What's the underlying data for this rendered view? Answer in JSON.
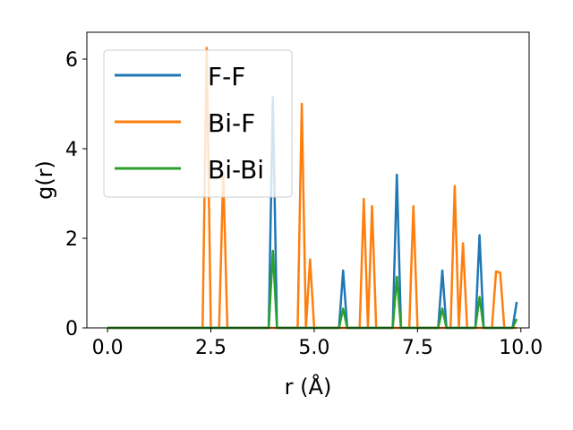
{
  "chart_data": {
    "type": "line",
    "xlabel": "r (Å)",
    "ylabel": "g(r)",
    "xlim": [
      -0.5,
      10.2
    ],
    "ylim": [
      0,
      6.6
    ],
    "xticks": [
      0.0,
      2.5,
      5.0,
      7.5,
      10.0
    ],
    "xtick_labels": [
      "0.0",
      "2.5",
      "5.0",
      "7.5",
      "10.0"
    ],
    "yticks": [
      0,
      2,
      4,
      6
    ],
    "ytick_labels": [
      "0",
      "2",
      "4",
      "6"
    ],
    "grid": false,
    "legend_position": "top-left",
    "series": [
      {
        "name": "F-F",
        "color": "#1f77b4",
        "x": [
          0.0,
          3.9,
          4.0,
          4.1,
          5.6,
          5.7,
          5.8,
          6.9,
          7.0,
          7.1,
          8.0,
          8.1,
          8.2,
          8.9,
          9.0,
          9.1,
          9.8,
          9.9
        ],
        "y": [
          0.0,
          0.0,
          5.15,
          0.0,
          0.0,
          1.28,
          0.0,
          0.0,
          3.42,
          0.0,
          0.0,
          1.28,
          0.0,
          0.0,
          2.07,
          0.0,
          0.0,
          0.58
        ]
      },
      {
        "name": "Bi-F",
        "color": "#ff7f0e",
        "x": [
          0.0,
          2.3,
          2.4,
          2.5,
          2.7,
          2.8,
          2.9,
          4.6,
          4.7,
          4.8,
          4.9,
          5.0,
          6.1,
          6.2,
          6.3,
          6.4,
          6.5,
          7.3,
          7.4,
          7.5,
          8.3,
          8.4,
          8.5,
          8.6,
          8.7,
          9.3,
          9.4,
          9.5,
          9.6,
          9.9
        ],
        "y": [
          0.0,
          0.0,
          6.25,
          0.0,
          0.0,
          3.47,
          0.0,
          0.0,
          5.0,
          0.0,
          1.53,
          0.0,
          0.0,
          2.88,
          0.0,
          2.72,
          0.0,
          0.0,
          2.72,
          0.0,
          0.0,
          3.17,
          0.0,
          1.89,
          0.0,
          0.0,
          1.26,
          1.23,
          0.0,
          0.0
        ]
      },
      {
        "name": "Bi-Bi",
        "color": "#2ca02c",
        "x": [
          0.0,
          3.9,
          4.0,
          4.1,
          5.6,
          5.7,
          5.8,
          6.9,
          7.0,
          7.1,
          8.0,
          8.1,
          8.2,
          8.9,
          9.0,
          9.1,
          9.8,
          9.9
        ],
        "y": [
          0.0,
          0.0,
          1.72,
          0.0,
          0.0,
          0.43,
          0.0,
          0.0,
          1.14,
          0.0,
          0.0,
          0.43,
          0.0,
          0.0,
          0.69,
          0.0,
          0.0,
          0.2
        ]
      }
    ]
  }
}
